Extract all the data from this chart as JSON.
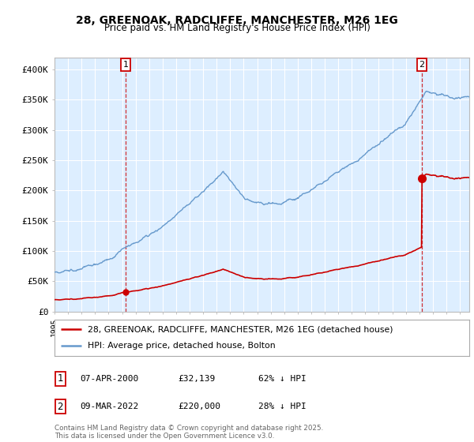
{
  "title_line1": "28, GREENOAK, RADCLIFFE, MANCHESTER, M26 1EG",
  "title_line2": "Price paid vs. HM Land Registry's House Price Index (HPI)",
  "legend_label_red": "28, GREENOAK, RADCLIFFE, MANCHESTER, M26 1EG (detached house)",
  "legend_label_blue": "HPI: Average price, detached house, Bolton",
  "annotation1_date": "07-APR-2000",
  "annotation1_price": "£32,139",
  "annotation1_hpi": "62% ↓ HPI",
  "annotation2_date": "09-MAR-2022",
  "annotation2_price": "£220,000",
  "annotation2_hpi": "28% ↓ HPI",
  "footnote": "Contains HM Land Registry data © Crown copyright and database right 2025.\nThis data is licensed under the Open Government Licence v3.0.",
  "ylim_max": 420000,
  "yticks": [
    0,
    50000,
    100000,
    150000,
    200000,
    250000,
    300000,
    350000,
    400000
  ],
  "ytick_labels": [
    "£0",
    "£50K",
    "£100K",
    "£150K",
    "£200K",
    "£250K",
    "£300K",
    "£350K",
    "£400K"
  ],
  "background_color": "#ffffff",
  "plot_bg_color": "#ddeeff",
  "grid_color": "#ffffff",
  "red_color": "#cc0000",
  "blue_color": "#6699cc",
  "sale1_x": 2000.27,
  "sale1_y": 32139,
  "sale2_x": 2022.19,
  "sale2_y": 220000,
  "xlim_start": 1995.0,
  "xlim_end": 2025.7
}
